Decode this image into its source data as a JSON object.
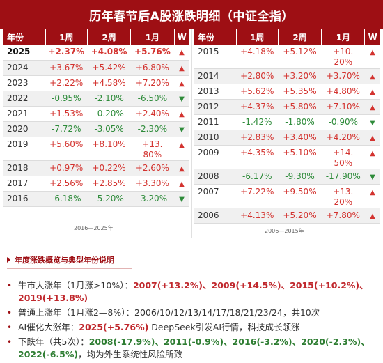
{
  "title": "历年春节后A股涨跌明细（中证全指）",
  "headers": {
    "year": "年份",
    "w1": "1周",
    "w2": "2周",
    "m1": "1月",
    "w": "W"
  },
  "left_rows": [
    {
      "year": "2025",
      "w1": "+2.37%",
      "w2": "+4.08%",
      "m1": "+5.76%",
      "dir": "up",
      "bold": true
    },
    {
      "year": "2024",
      "w1": "+3.67%",
      "w2": "+5.42%",
      "m1": "+6.80%",
      "dir": "up"
    },
    {
      "year": "2023",
      "w1": "+2.22%",
      "w2": "+4.58%",
      "m1": "+7.20%",
      "dir": "up"
    },
    {
      "year": "2022",
      "w1": "-0.95%",
      "w2": "-2.10%",
      "m1": "-6.50%",
      "dir": "down"
    },
    {
      "year": "2021",
      "w1": "+1.53%",
      "w2": "-0.20%",
      "m1": "+2.40%",
      "dir": "up"
    },
    {
      "year": "2020",
      "w1": "-7.72%",
      "w2": "-3.05%",
      "m1": "-2.30%",
      "dir": "down"
    },
    {
      "year": "2019",
      "w1": "+5.60%",
      "w2": "+8.10%",
      "m1": "+13.80%",
      "dir": "up",
      "tall": true
    },
    {
      "year": "2018",
      "w1": "+0.97%",
      "w2": "+0.22%",
      "m1": "+2.60%",
      "dir": "up"
    },
    {
      "year": "2017",
      "w1": "+2.56%",
      "w2": "+2.85%",
      "m1": "+3.30%",
      "dir": "up"
    },
    {
      "year": "2016",
      "w1": "-6.18%",
      "w2": "-5.20%",
      "m1": "-3.20%",
      "dir": "down"
    }
  ],
  "right_rows": [
    {
      "year": "2015",
      "w1": "+4.18%",
      "w2": "+5.12%",
      "m1": "+10.20%",
      "dir": "up",
      "tall": true
    },
    {
      "year": "2014",
      "w1": "+2.80%",
      "w2": "+3.20%",
      "m1": "+3.70%",
      "dir": "up"
    },
    {
      "year": "2013",
      "w1": "+5.62%",
      "w2": "+5.35%",
      "m1": "+4.80%",
      "dir": "up"
    },
    {
      "year": "2012",
      "w1": "+4.37%",
      "w2": "+5.80%",
      "m1": "+7.10%",
      "dir": "up"
    },
    {
      "year": "2011",
      "w1": "-1.42%",
      "w2": "-1.80%",
      "m1": "-0.90%",
      "dir": "down"
    },
    {
      "year": "2010",
      "w1": "+2.83%",
      "w2": "+3.40%",
      "m1": "+4.20%",
      "dir": "up"
    },
    {
      "year": "2009",
      "w1": "+4.35%",
      "w2": "+5.10%",
      "m1": "+14.50%",
      "dir": "up",
      "tall": true
    },
    {
      "year": "2008",
      "w1": "-6.17%",
      "w2": "-9.30%",
      "m1": "-17.90%",
      "dir": "down"
    },
    {
      "year": "2007",
      "w1": "+7.22%",
      "w2": "+9.50%",
      "m1": "+13.20%",
      "dir": "up",
      "tall": true
    },
    {
      "year": "2006",
      "w1": "+4.13%",
      "w2": "+5.20%",
      "m1": "+7.80%",
      "dir": "up"
    }
  ],
  "left_footnote": "2016—2025年",
  "right_footnote": "2006—2015年",
  "section_title": "年度涨跌概览与典型年份说明",
  "bullet_dot": "•",
  "bullets": {
    "b1_label": "牛市大涨年（1月涨>10%）：",
    "b1_values": "2007(+13.2%)、2009(+14.5%)、2015(+10.2%)、2019(+13.8%)",
    "b2_text": "普通上涨年（1月涨2—8%）：2006/10/12/13/14/17/18/21/23/24，共10次",
    "b3_label": "AI催化大涨年：",
    "b3_value": "2025(+5.76%)",
    "b3_rest": " DeepSeek引发AI行情，科技成长领涨",
    "b4_label": "下跌年（共5次）：",
    "b4_values": "2008(-17.9%)、2011(-0.9%)、2016(-3.2%)、2020(-2.3%)、2022(-6.5%)",
    "b4_rest": "，均为外生系统性风险所致"
  },
  "arrows": {
    "up": "▲",
    "down": "▼"
  },
  "colors": {
    "header_bg": "#9e0f14",
    "positive": "#d3332f",
    "negative": "#2e8b3a"
  }
}
